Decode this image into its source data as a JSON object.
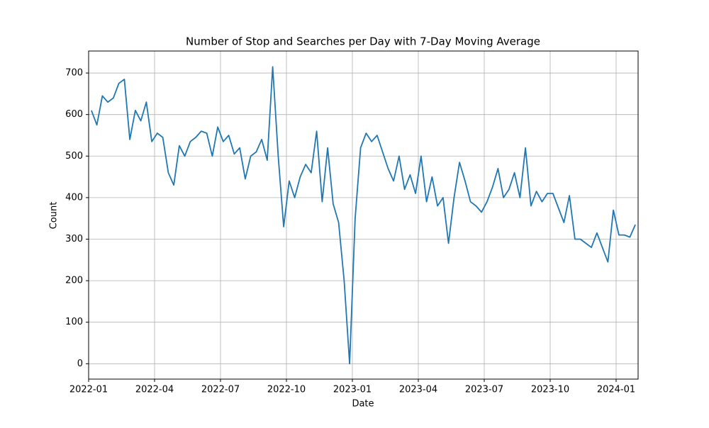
{
  "chart_data": {
    "type": "line",
    "title": "Number of Stop and Searches per Day with 7-Day Moving Average",
    "x_label": "Date",
    "y_label": "Count",
    "x": [
      "2022-01",
      "2022-01",
      "2022-01",
      "2022-01",
      "2022-02",
      "2022-02",
      "2022-02",
      "2022-02",
      "2022-03",
      "2022-03",
      "2022-03",
      "2022-03",
      "2022-04",
      "2022-04",
      "2022-04",
      "2022-04",
      "2022-05",
      "2022-05",
      "2022-05",
      "2022-05",
      "2022-06",
      "2022-06",
      "2022-06",
      "2022-06",
      "2022-07",
      "2022-07",
      "2022-07",
      "2022-07",
      "2022-08",
      "2022-08",
      "2022-08",
      "2022-08",
      "2022-09",
      "2022-09",
      "2022-09",
      "2022-09",
      "2022-10",
      "2022-10",
      "2022-10",
      "2022-10",
      "2022-11",
      "2022-11",
      "2022-11",
      "2022-11",
      "2022-12",
      "2022-12",
      "2022-12",
      "2022-12",
      "2023-01",
      "2023-01",
      "2023-01",
      "2023-01",
      "2023-02",
      "2023-02",
      "2023-02",
      "2023-02",
      "2023-03",
      "2023-03",
      "2023-03",
      "2023-03",
      "2023-04",
      "2023-04",
      "2023-04",
      "2023-04",
      "2023-05",
      "2023-05",
      "2023-05",
      "2023-05",
      "2023-06",
      "2023-06",
      "2023-06",
      "2023-06",
      "2023-07",
      "2023-07",
      "2023-07",
      "2023-07",
      "2023-08",
      "2023-08",
      "2023-08",
      "2023-08",
      "2023-09",
      "2023-09",
      "2023-09",
      "2023-09",
      "2023-10",
      "2023-10",
      "2023-10",
      "2023-10",
      "2023-11",
      "2023-11",
      "2023-11",
      "2023-11",
      "2023-12",
      "2023-12",
      "2023-12",
      "2023-12",
      "2024-01",
      "2024-01",
      "2024-01",
      "2024-01"
    ],
    "series": [
      {
        "name": "7-Day Moving Average",
        "color": "#1f77b4",
        "values": [
          610,
          575,
          645,
          630,
          640,
          675,
          685,
          540,
          610,
          585,
          630,
          535,
          555,
          545,
          460,
          430,
          525,
          500,
          535,
          545,
          560,
          555,
          500,
          570,
          535,
          550,
          505,
          520,
          445,
          500,
          510,
          540,
          490,
          715,
          500,
          330,
          440,
          400,
          450,
          480,
          460,
          560,
          390,
          520,
          385,
          340,
          200,
          0,
          350,
          520,
          555,
          535,
          550,
          510,
          470,
          440,
          500,
          420,
          455,
          410,
          500,
          390,
          450,
          380,
          400,
          290,
          400,
          485,
          440,
          390,
          380,
          365,
          390,
          425,
          470,
          400,
          420,
          460,
          400,
          520,
          380,
          415,
          390,
          410,
          410,
          375,
          340,
          405,
          300,
          300,
          290,
          280,
          315,
          280,
          245,
          370,
          310,
          310,
          305,
          335
        ]
      }
    ],
    "xlim": [
      "2022-01",
      "2024-02"
    ],
    "xticks": [
      "2022-01",
      "2022-04",
      "2022-07",
      "2022-10",
      "2023-01",
      "2023-04",
      "2023-07",
      "2023-10",
      "2024-01"
    ],
    "ylim": [
      -37,
      753
    ],
    "yticks": [
      0,
      100,
      200,
      300,
      400,
      500,
      600,
      700
    ],
    "grid": true
  }
}
